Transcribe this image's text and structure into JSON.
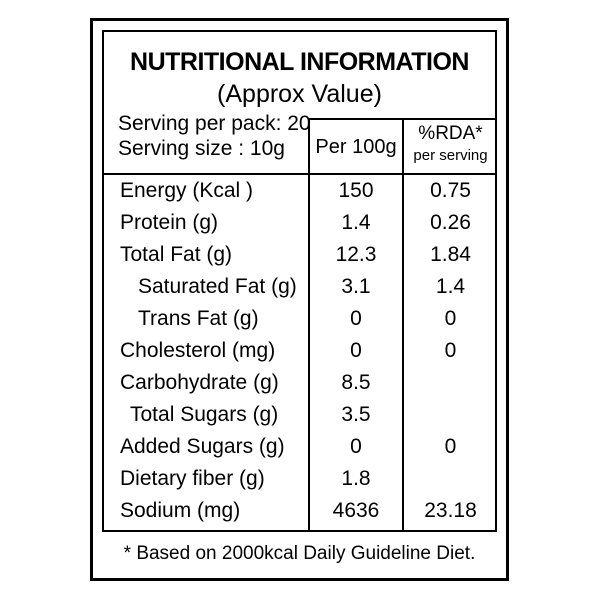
{
  "label": {
    "title": "NUTRITIONAL INFORMATION",
    "subtitle": "(Approx Value)",
    "serving_per_pack": "Serving per pack: 20",
    "serving_size": "Serving size : 10g",
    "col_per100": "Per 100g",
    "col_rda_line1": "%RDA*",
    "col_rda_line2": "per serving",
    "rows": [
      {
        "name": "Energy (Kcal )",
        "per100": "150",
        "rda": "0.75"
      },
      {
        "name": "Protein (g)",
        "per100": "1.4",
        "rda": "0.26"
      },
      {
        "name": "Total Fat (g)",
        "per100": "12.3",
        "rda": "1.84"
      },
      {
        "name": "Saturated Fat (g)",
        "per100": "3.1",
        "rda": "1.4"
      },
      {
        "name": "Trans Fat (g)",
        "per100": "0",
        "rda": "0"
      },
      {
        "name": "Cholesterol (mg)",
        "per100": "0",
        "rda": "0"
      },
      {
        "name": "Carbohydrate (g)",
        "per100": "8.5",
        "rda": ""
      },
      {
        "name": "Total Sugars (g)",
        "per100": "3.5",
        "rda": ""
      },
      {
        "name": "Added Sugars (g)",
        "per100": "0",
        "rda": "0"
      },
      {
        "name": "Dietary fiber  (g)",
        "per100": "1.8",
        "rda": ""
      },
      {
        "name": "Sodium (mg)",
        "per100": "4636",
        "rda": "23.18"
      }
    ],
    "footnote": "* Based on 2000kcal Daily Guideline Diet."
  }
}
